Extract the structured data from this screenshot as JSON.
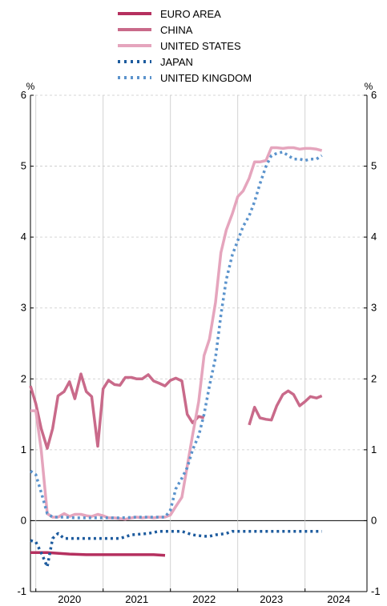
{
  "chart_data": {
    "type": "line",
    "title": "",
    "ylabel_left": "%",
    "ylabel_right": "%",
    "ylim": [
      -1,
      6
    ],
    "yticks": [
      -1,
      0,
      1,
      2,
      3,
      4,
      5,
      6
    ],
    "ytick_labels": [
      "-1",
      "0",
      "1",
      "2",
      "3",
      "4",
      "5",
      "6"
    ],
    "xlim": [
      2019.92,
      2024.92
    ],
    "xtick_labels": [
      "2020",
      "2021",
      "2022",
      "2023",
      "2024"
    ],
    "year_starts": [
      2020,
      2021,
      2022,
      2023,
      2024
    ],
    "grid": true,
    "legend_position": "top",
    "series": [
      {
        "name": "EURO AREA",
        "color": "#b5305f",
        "style": "solid",
        "points": [
          [
            2019.92,
            -0.45
          ],
          [
            2020.17,
            -0.45
          ],
          [
            2020.5,
            -0.47
          ],
          [
            2020.75,
            -0.48
          ],
          [
            2021.0,
            -0.48
          ],
          [
            2021.25,
            -0.48
          ],
          [
            2021.5,
            -0.48
          ],
          [
            2021.75,
            -0.48
          ],
          [
            2021.92,
            -0.49
          ]
        ]
      },
      {
        "name": "CHINA",
        "color": "#c96a8a",
        "style": "solid",
        "segments": [
          [
            [
              2019.92,
              1.9
            ],
            [
              2020.0,
              1.65
            ],
            [
              2020.08,
              1.3
            ],
            [
              2020.17,
              1.02
            ],
            [
              2020.25,
              1.3
            ],
            [
              2020.33,
              1.76
            ],
            [
              2020.42,
              1.82
            ],
            [
              2020.5,
              1.96
            ],
            [
              2020.58,
              1.72
            ],
            [
              2020.67,
              2.07
            ],
            [
              2020.75,
              1.82
            ],
            [
              2020.83,
              1.75
            ],
            [
              2020.92,
              1.05
            ],
            [
              2021.0,
              1.86
            ],
            [
              2021.08,
              1.98
            ],
            [
              2021.17,
              1.92
            ],
            [
              2021.25,
              1.91
            ],
            [
              2021.33,
              2.02
            ],
            [
              2021.42,
              2.02
            ],
            [
              2021.5,
              2.0
            ],
            [
              2021.58,
              2.0
            ],
            [
              2021.67,
              2.06
            ],
            [
              2021.75,
              1.97
            ],
            [
              2021.83,
              1.94
            ],
            [
              2021.92,
              1.9
            ],
            [
              2022.0,
              1.98
            ],
            [
              2022.08,
              2.01
            ],
            [
              2022.17,
              1.97
            ],
            [
              2022.25,
              1.5
            ],
            [
              2022.33,
              1.38
            ],
            [
              2022.42,
              1.47
            ],
            [
              2022.5,
              1.45
            ]
          ],
          [
            [
              2023.17,
              1.35
            ],
            [
              2023.25,
              1.6
            ],
            [
              2023.33,
              1.45
            ],
            [
              2023.42,
              1.43
            ],
            [
              2023.5,
              1.42
            ],
            [
              2023.58,
              1.62
            ],
            [
              2023.67,
              1.78
            ],
            [
              2023.75,
              1.83
            ],
            [
              2023.83,
              1.78
            ],
            [
              2023.92,
              1.62
            ],
            [
              2024.0,
              1.68
            ],
            [
              2024.08,
              1.75
            ],
            [
              2024.17,
              1.73
            ],
            [
              2024.25,
              1.76
            ]
          ]
        ]
      },
      {
        "name": "UNITED STATES",
        "color": "#e5a5bd",
        "style": "solid",
        "points": [
          [
            2019.92,
            1.55
          ],
          [
            2020.0,
            1.55
          ],
          [
            2020.08,
            1.0
          ],
          [
            2020.17,
            0.1
          ],
          [
            2020.25,
            0.05
          ],
          [
            2020.33,
            0.05
          ],
          [
            2020.42,
            0.1
          ],
          [
            2020.5,
            0.06
          ],
          [
            2020.58,
            0.09
          ],
          [
            2020.67,
            0.09
          ],
          [
            2020.75,
            0.07
          ],
          [
            2020.83,
            0.06
          ],
          [
            2020.92,
            0.09
          ],
          [
            2021.0,
            0.07
          ],
          [
            2021.08,
            0.04
          ],
          [
            2021.17,
            0.04
          ],
          [
            2021.25,
            0.03
          ],
          [
            2021.33,
            0.02
          ],
          [
            2021.42,
            0.04
          ],
          [
            2021.5,
            0.05
          ],
          [
            2021.58,
            0.04
          ],
          [
            2021.67,
            0.05
          ],
          [
            2021.75,
            0.04
          ],
          [
            2021.83,
            0.05
          ],
          [
            2021.92,
            0.05
          ],
          [
            2022.0,
            0.08
          ],
          [
            2022.08,
            0.2
          ],
          [
            2022.17,
            0.33
          ],
          [
            2022.25,
            0.77
          ],
          [
            2022.33,
            1.21
          ],
          [
            2022.42,
            1.68
          ],
          [
            2022.5,
            2.33
          ],
          [
            2022.58,
            2.56
          ],
          [
            2022.67,
            3.08
          ],
          [
            2022.75,
            3.78
          ],
          [
            2022.83,
            4.1
          ],
          [
            2022.92,
            4.33
          ],
          [
            2023.0,
            4.57
          ],
          [
            2023.08,
            4.65
          ],
          [
            2023.17,
            4.83
          ],
          [
            2023.25,
            5.06
          ],
          [
            2023.33,
            5.06
          ],
          [
            2023.42,
            5.08
          ],
          [
            2023.5,
            5.26
          ],
          [
            2023.58,
            5.26
          ],
          [
            2023.67,
            5.25
          ],
          [
            2023.75,
            5.26
          ],
          [
            2023.83,
            5.26
          ],
          [
            2023.92,
            5.24
          ],
          [
            2024.0,
            5.25
          ],
          [
            2024.08,
            5.25
          ],
          [
            2024.17,
            5.24
          ],
          [
            2024.25,
            5.22
          ]
        ]
      },
      {
        "name": "JAPAN",
        "color": "#1d5b9e",
        "style": "dotted",
        "points": [
          [
            2019.92,
            -0.28
          ],
          [
            2020.0,
            -0.3
          ],
          [
            2020.08,
            -0.45
          ],
          [
            2020.17,
            -0.65
          ],
          [
            2020.25,
            -0.25
          ],
          [
            2020.33,
            -0.18
          ],
          [
            2020.42,
            -0.25
          ],
          [
            2020.58,
            -0.25
          ],
          [
            2020.75,
            -0.25
          ],
          [
            2021.0,
            -0.25
          ],
          [
            2021.25,
            -0.25
          ],
          [
            2021.42,
            -0.2
          ],
          [
            2021.67,
            -0.18
          ],
          [
            2021.83,
            -0.15
          ],
          [
            2022.0,
            -0.15
          ],
          [
            2022.17,
            -0.15
          ],
          [
            2022.33,
            -0.2
          ],
          [
            2022.5,
            -0.22
          ],
          [
            2022.58,
            -0.22
          ],
          [
            2022.67,
            -0.2
          ],
          [
            2022.83,
            -0.18
          ],
          [
            2022.92,
            -0.15
          ],
          [
            2023.0,
            -0.15
          ],
          [
            2023.5,
            -0.15
          ],
          [
            2024.0,
            -0.15
          ],
          [
            2024.25,
            -0.15
          ]
        ]
      },
      {
        "name": "UNITED KINGDOM",
        "color": "#5b93cc",
        "style": "dotted",
        "points": [
          [
            2019.92,
            0.7
          ],
          [
            2020.0,
            0.65
          ],
          [
            2020.08,
            0.4
          ],
          [
            2020.17,
            0.1
          ],
          [
            2020.25,
            0.05
          ],
          [
            2020.42,
            0.05
          ],
          [
            2020.58,
            0.04
          ],
          [
            2020.75,
            0.04
          ],
          [
            2021.0,
            0.04
          ],
          [
            2021.25,
            0.04
          ],
          [
            2021.5,
            0.05
          ],
          [
            2021.75,
            0.05
          ],
          [
            2021.92,
            0.05
          ],
          [
            2022.0,
            0.15
          ],
          [
            2022.08,
            0.45
          ],
          [
            2022.17,
            0.6
          ],
          [
            2022.25,
            0.75
          ],
          [
            2022.33,
            1.0
          ],
          [
            2022.42,
            1.2
          ],
          [
            2022.5,
            1.5
          ],
          [
            2022.58,
            1.9
          ],
          [
            2022.67,
            2.3
          ],
          [
            2022.75,
            2.9
          ],
          [
            2022.83,
            3.4
          ],
          [
            2022.92,
            3.75
          ],
          [
            2023.0,
            3.95
          ],
          [
            2023.08,
            4.15
          ],
          [
            2023.17,
            4.3
          ],
          [
            2023.25,
            4.5
          ],
          [
            2023.33,
            4.75
          ],
          [
            2023.42,
            5.0
          ],
          [
            2023.5,
            5.15
          ],
          [
            2023.58,
            5.18
          ],
          [
            2023.67,
            5.2
          ],
          [
            2023.75,
            5.15
          ],
          [
            2023.83,
            5.1
          ],
          [
            2023.92,
            5.1
          ],
          [
            2024.0,
            5.08
          ],
          [
            2024.08,
            5.1
          ],
          [
            2024.17,
            5.1
          ],
          [
            2024.25,
            5.15
          ]
        ]
      }
    ]
  }
}
